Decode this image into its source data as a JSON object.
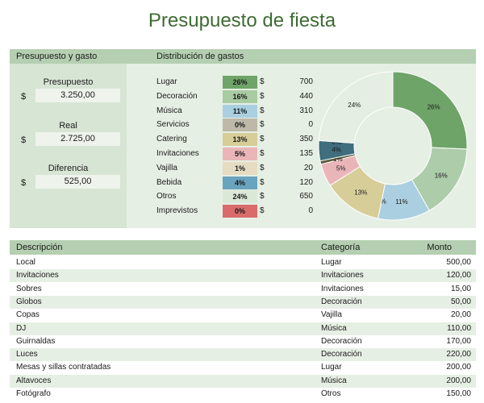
{
  "title": "Presupuesto de fiesta",
  "left_panel": {
    "header": "Presupuesto y gasto",
    "currency": "$",
    "budget_label": "Presupuesto",
    "budget_value": "3.250,00",
    "actual_label": "Real",
    "actual_value": "2.725,00",
    "diff_label": "Diferencia",
    "diff_value": "525,00"
  },
  "distribution": {
    "header": "Distribución de gastos",
    "currency": "$",
    "rows": [
      {
        "category": "Lugar",
        "percent": "26%",
        "amount": "700",
        "color": "#6fa468"
      },
      {
        "category": "Decoración",
        "percent": "16%",
        "amount": "440",
        "color": "#a9caa2"
      },
      {
        "category": "Música",
        "percent": "11%",
        "amount": "310",
        "color": "#a9cfe0"
      },
      {
        "category": "Servicios",
        "percent": "0%",
        "amount": "0",
        "color": "#bdb8a8"
      },
      {
        "category": "Catering",
        "percent": "13%",
        "amount": "350",
        "color": "#d6cd98"
      },
      {
        "category": "Invitaciones",
        "percent": "5%",
        "amount": "135",
        "color": "#eab5b9"
      },
      {
        "category": "Vajilla",
        "percent": "1%",
        "amount": "20",
        "color": "#e5dcc3"
      },
      {
        "category": "Bebida",
        "percent": "4%",
        "amount": "120",
        "color": "#6aa3bd"
      },
      {
        "category": "Otros",
        "percent": "24%",
        "amount": "650",
        "color": "#dbe8d8"
      },
      {
        "category": "Imprevistos",
        "percent": "0%",
        "amount": "0",
        "color": "#d96b6b"
      }
    ]
  },
  "chart_data": {
    "type": "pie",
    "donut": true,
    "labels": [
      "Lugar",
      "Decoración",
      "Música",
      "Servicios",
      "Catering",
      "Invitaciones",
      "Vajilla",
      "Bebida",
      "Imprevistos",
      "Otros"
    ],
    "values": [
      700,
      440,
      310,
      0,
      350,
      135,
      20,
      120,
      0,
      650
    ],
    "label_texts": [
      "26%",
      "16%",
      "11%",
      "0%",
      "13%",
      "5%",
      "1%",
      "4%",
      "0%",
      "24%"
    ],
    "colors": [
      "#6fa468",
      "#acccaa",
      "#a9cfe0",
      "#bdb8a8",
      "#d6cd98",
      "#eab5b9",
      "#5e5a3c",
      "#3f6e7e",
      "#d96b6b",
      "#e4eee2"
    ]
  },
  "table": {
    "headers": {
      "desc": "Descripción",
      "cat": "Categoría",
      "amount": "Monto"
    },
    "rows": [
      {
        "desc": "Local",
        "cat": "Lugar",
        "amount": "500,00"
      },
      {
        "desc": "Invitaciones",
        "cat": "Invitaciones",
        "amount": "120,00"
      },
      {
        "desc": "Sobres",
        "cat": "Invitaciones",
        "amount": "15,00"
      },
      {
        "desc": "Globos",
        "cat": "Decoración",
        "amount": "50,00"
      },
      {
        "desc": "Copas",
        "cat": "Vajilla",
        "amount": "20,00"
      },
      {
        "desc": "DJ",
        "cat": "Música",
        "amount": "110,00"
      },
      {
        "desc": "Guirnaldas",
        "cat": "Decoración",
        "amount": "170,00"
      },
      {
        "desc": "Luces",
        "cat": "Decoración",
        "amount": "220,00"
      },
      {
        "desc": "Mesas y sillas contratadas",
        "cat": "Lugar",
        "amount": "200,00"
      },
      {
        "desc": "Altavoces",
        "cat": "Música",
        "amount": "200,00"
      },
      {
        "desc": "Fotógrafo",
        "cat": "Otros",
        "amount": "150,00"
      }
    ]
  }
}
